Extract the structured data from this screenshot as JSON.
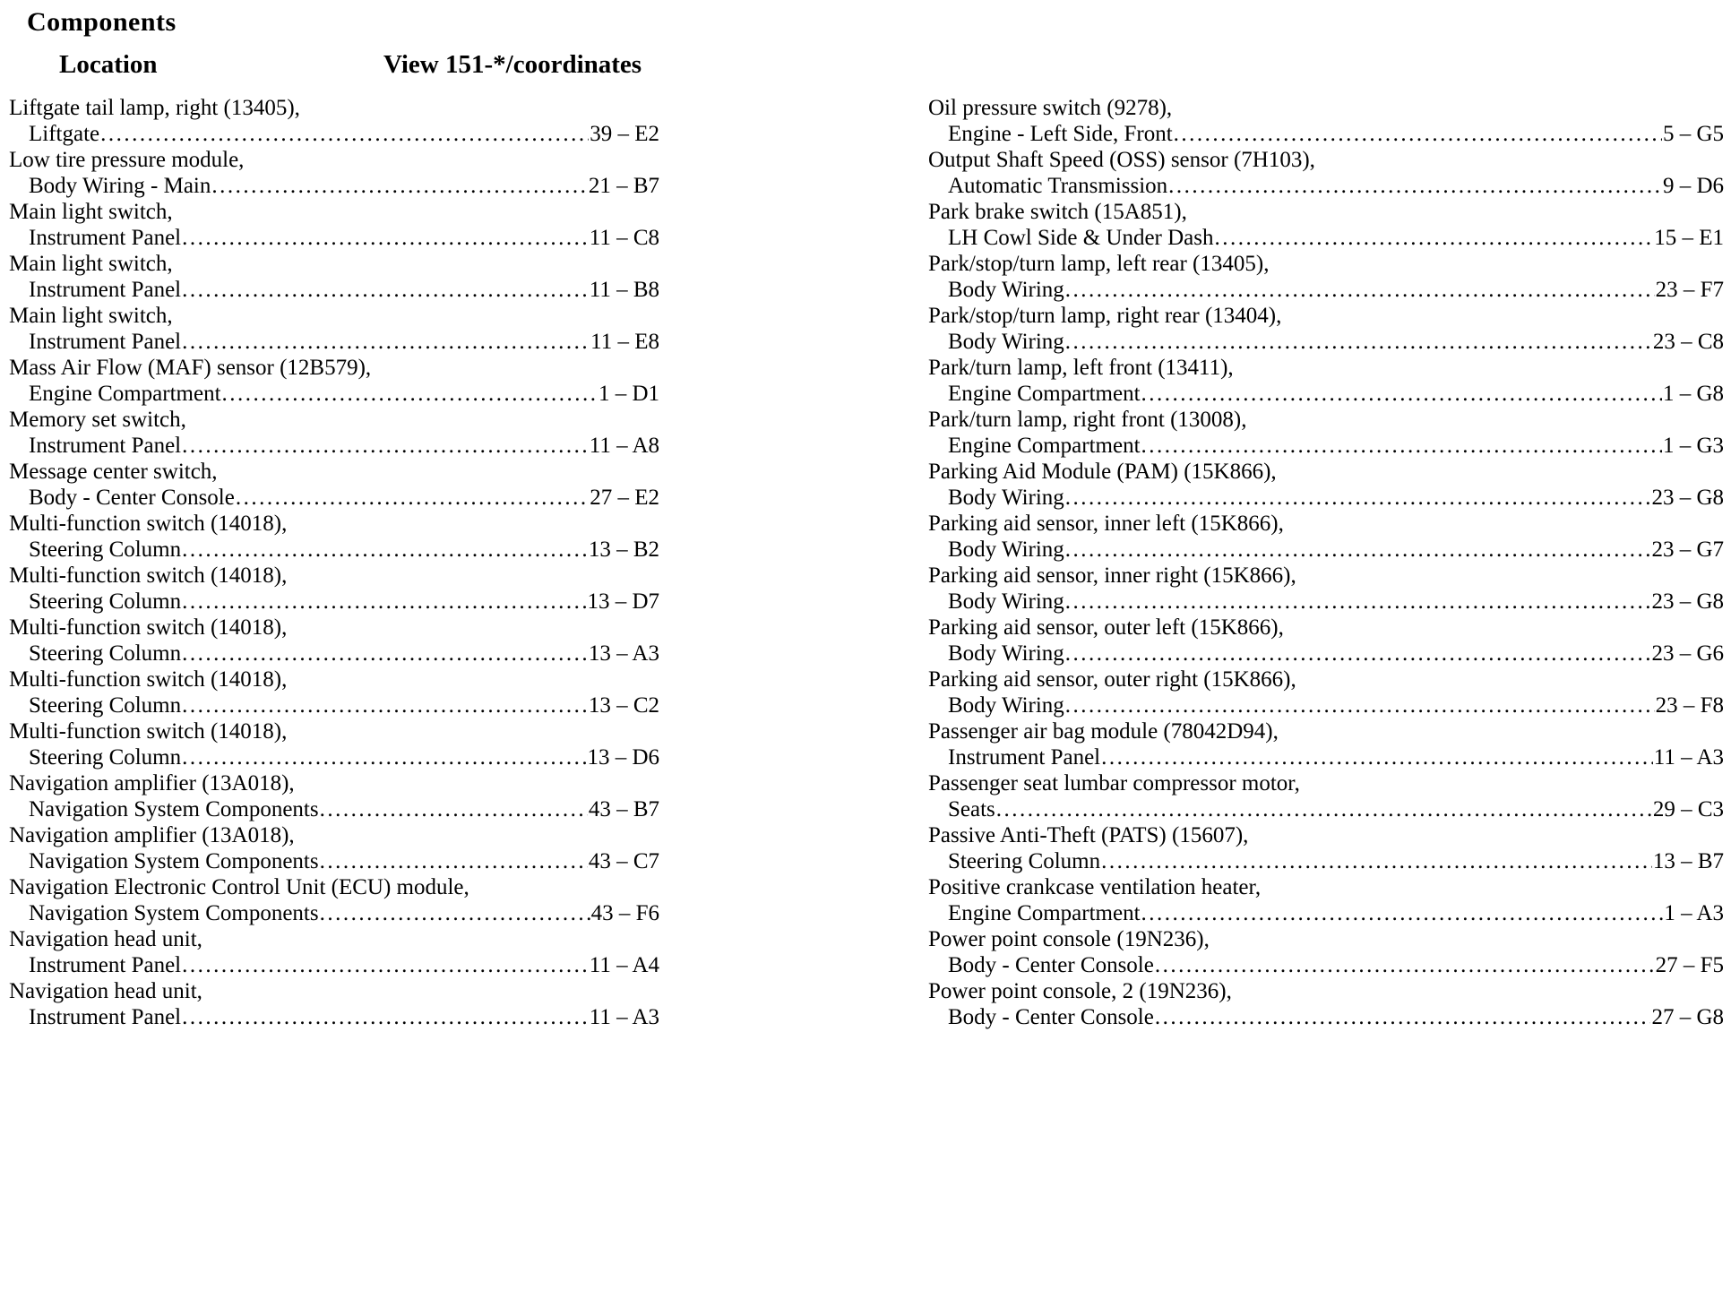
{
  "header": {
    "title": "Components",
    "location_label": "Location",
    "view_label": "View 151-*/coordinates"
  },
  "columns": {
    "left": [
      {
        "name": "Liftgate tail lamp, right (13405),",
        "location": "Liftgate",
        "coord": "39 – E2"
      },
      {
        "name": "Low tire pressure module,",
        "location": "Body Wiring - Main",
        "coord": "21 – B7"
      },
      {
        "name": "Main light switch,",
        "location": "Instrument Panel",
        "coord": "11 – C8"
      },
      {
        "name": "Main light switch,",
        "location": "Instrument Panel",
        "coord": "11 – B8"
      },
      {
        "name": "Main light switch,",
        "location": "Instrument Panel",
        "coord": "11 – E8"
      },
      {
        "name": "Mass Air Flow (MAF) sensor (12B579),",
        "location": "Engine Compartment",
        "coord": "1 – D1"
      },
      {
        "name": "Memory set switch,",
        "location": "Instrument Panel",
        "coord": "11 – A8"
      },
      {
        "name": "Message center switch,",
        "location": "Body - Center Console",
        "coord": "27 – E2"
      },
      {
        "name": "Multi-function switch (14018),",
        "location": "Steering Column",
        "coord": "13 – B2"
      },
      {
        "name": "Multi-function switch (14018),",
        "location": "Steering Column",
        "coord": "13 – D7"
      },
      {
        "name": "Multi-function switch (14018),",
        "location": "Steering Column",
        "coord": "13 – A3"
      },
      {
        "name": "Multi-function switch (14018),",
        "location": "Steering Column",
        "coord": "13 – C2"
      },
      {
        "name": "Multi-function switch (14018),",
        "location": "Steering Column",
        "coord": "13 – D6"
      },
      {
        "name": "Navigation amplifier (13A018),",
        "location": "Navigation System Components",
        "coord": "43 – B7"
      },
      {
        "name": "Navigation amplifier (13A018),",
        "location": "Navigation System Components",
        "coord": "43 – C7"
      },
      {
        "name": "Navigation Electronic Control Unit (ECU) module,",
        "location": "Navigation System Components",
        "coord": "43 – F6"
      },
      {
        "name": "Navigation head unit,",
        "location": "Instrument Panel",
        "coord": "11 – A4"
      },
      {
        "name": "Navigation head unit,",
        "location": "Instrument Panel",
        "coord": "11 – A3"
      }
    ],
    "right": [
      {
        "name": "Oil pressure switch (9278),",
        "location": "Engine - Left Side, Front",
        "coord": "5 – G5"
      },
      {
        "name": "Output Shaft Speed (OSS) sensor (7H103),",
        "location": "Automatic Transmission",
        "coord": "9 – D6"
      },
      {
        "name": "Park brake switch (15A851),",
        "location": "LH Cowl Side & Under Dash",
        "coord": "15 – E1"
      },
      {
        "name": "Park/stop/turn lamp, left rear (13405),",
        "location": "Body Wiring",
        "coord": "23 – F7"
      },
      {
        "name": "Park/stop/turn lamp, right rear (13404),",
        "location": "Body Wiring",
        "coord": "23 – C8"
      },
      {
        "name": "Park/turn lamp, left front (13411),",
        "location": "Engine Compartment",
        "coord": "1 – G8"
      },
      {
        "name": "Park/turn lamp, right front (13008),",
        "location": "Engine Compartment",
        "coord": "1 – G3"
      },
      {
        "name": "Parking Aid Module (PAM) (15K866),",
        "location": "Body Wiring",
        "coord": "23 – G8"
      },
      {
        "name": "Parking aid sensor, inner left (15K866),",
        "location": "Body Wiring",
        "coord": "23 – G7"
      },
      {
        "name": "Parking aid sensor, inner right (15K866),",
        "location": "Body Wiring",
        "coord": "23 – G8"
      },
      {
        "name": "Parking aid sensor, outer left (15K866),",
        "location": "Body Wiring",
        "coord": "23 – G6"
      },
      {
        "name": "Parking aid sensor, outer right (15K866),",
        "location": "Body Wiring",
        "coord": "23 – F8"
      },
      {
        "name": "Passenger air bag module (78042D94),",
        "location": "Instrument Panel",
        "coord": "11 – A3"
      },
      {
        "name": "Passenger seat lumbar compressor motor,",
        "location": "Seats",
        "coord": "29 – C3"
      },
      {
        "name": "Passive Anti-Theft (PATS) (15607),",
        "location": "Steering Column",
        "coord": "13 – B7"
      },
      {
        "name": "Positive crankcase ventilation heater,",
        "location": "Engine Compartment",
        "coord": "1 – A3"
      },
      {
        "name": "Power point console (19N236),",
        "location": "Body - Center Console",
        "coord": "27 – F5"
      },
      {
        "name": "Power point console, 2 (19N236),",
        "location": "Body - Center Console",
        "coord": "27 – G8"
      }
    ]
  }
}
